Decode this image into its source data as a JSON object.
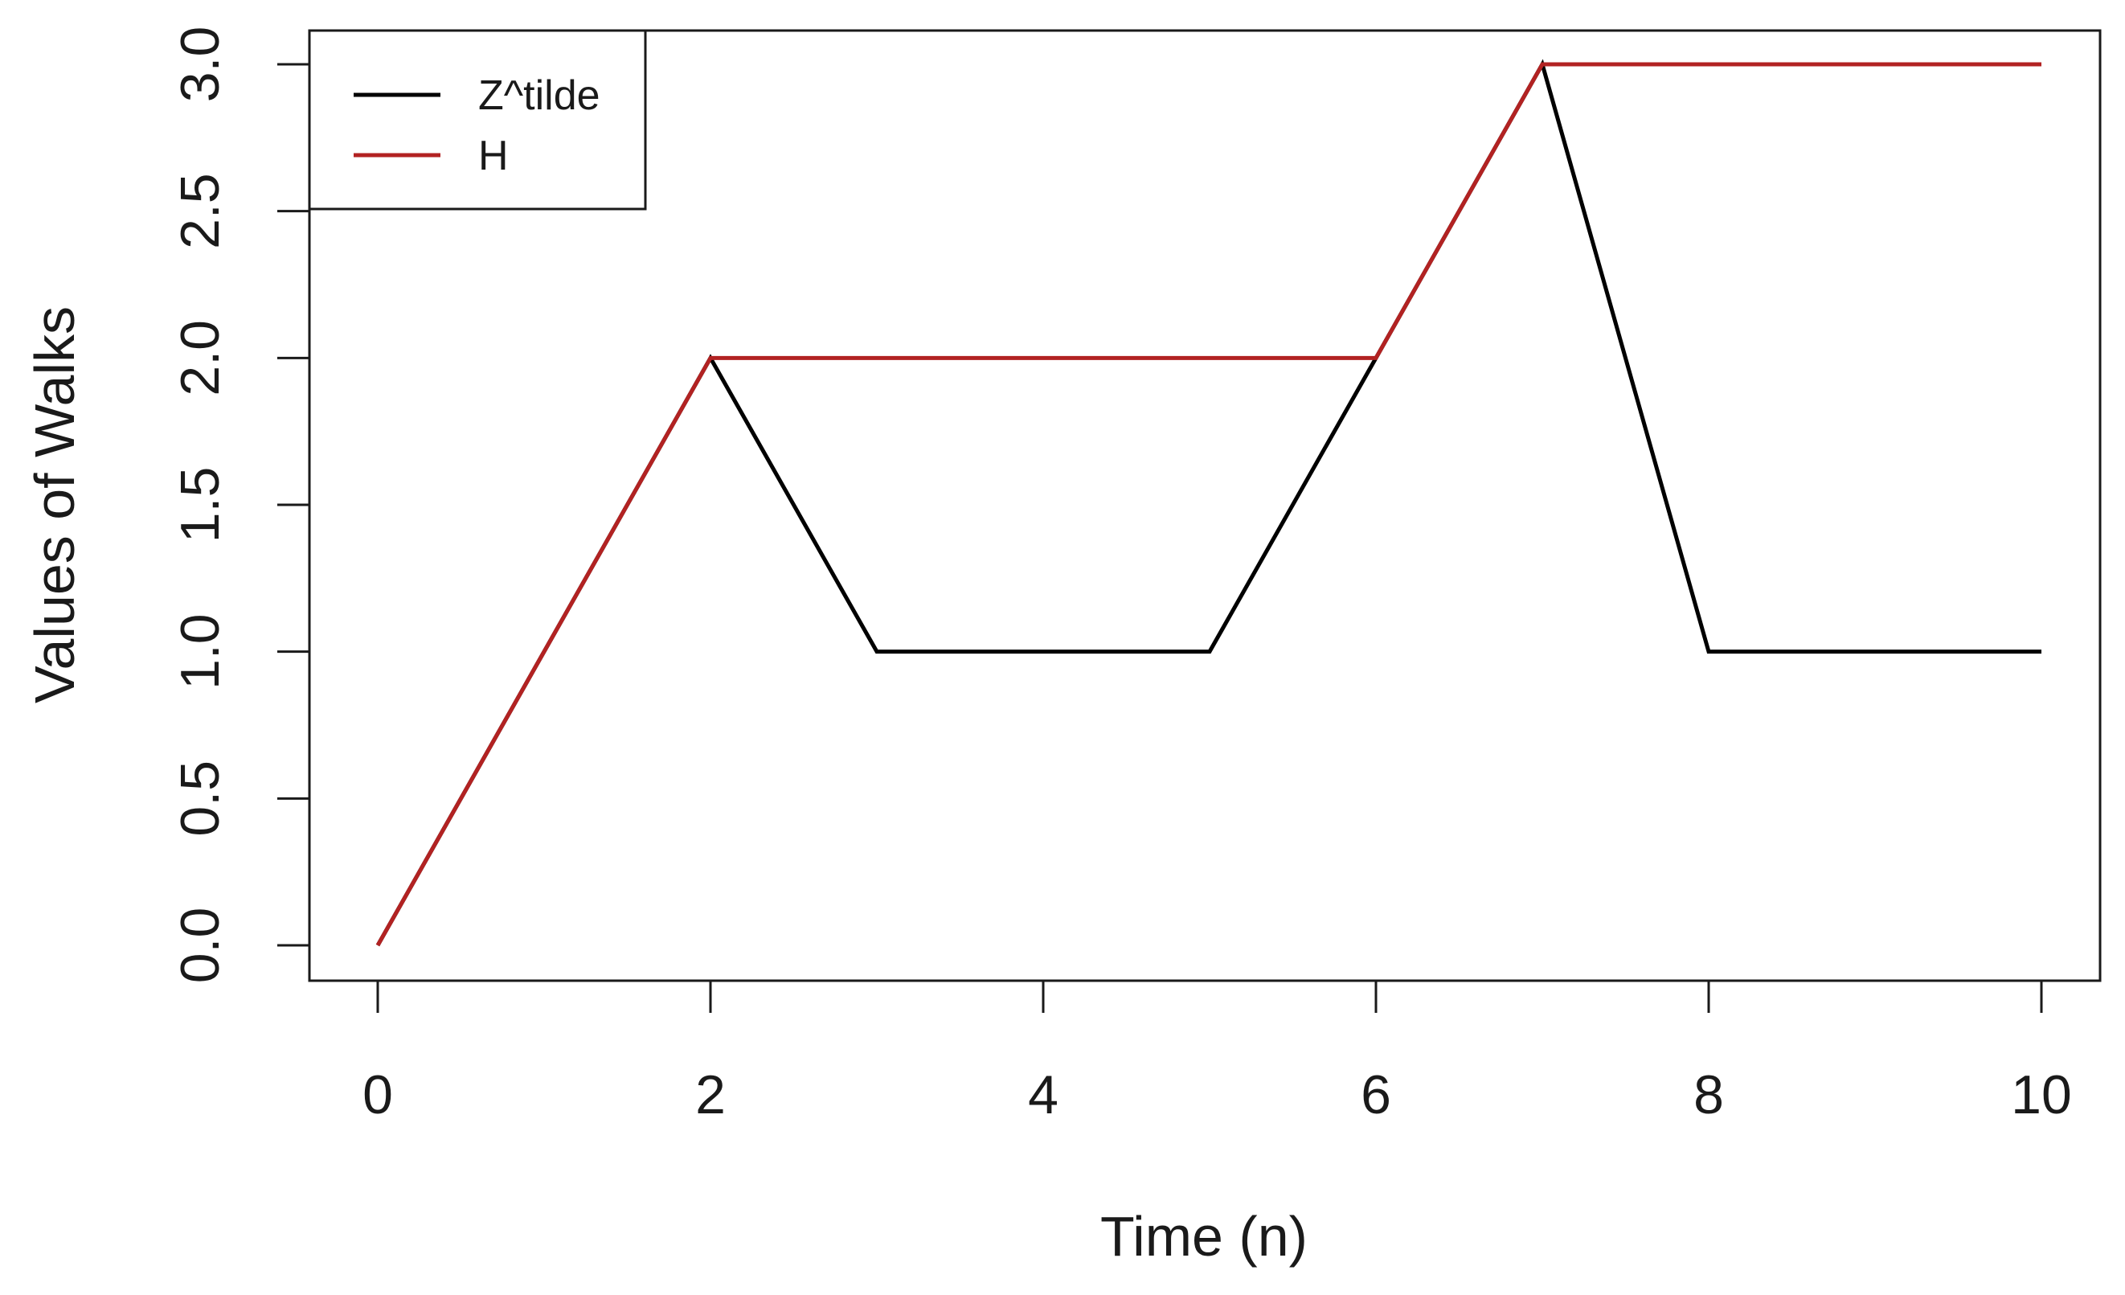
{
  "chart_data": {
    "type": "line",
    "title": "",
    "xlabel": "Time (n)",
    "ylabel": "Values of Walks",
    "xlim": [
      0,
      10
    ],
    "ylim": [
      0,
      3
    ],
    "x_ticks": [
      0,
      2,
      4,
      6,
      8,
      10
    ],
    "x_tick_labels": [
      "0",
      "2",
      "4",
      "6",
      "8",
      "10"
    ],
    "y_ticks": [
      0,
      0.5,
      1,
      1.5,
      2,
      2.5,
      3
    ],
    "y_tick_labels": [
      "0.0",
      "0.5",
      "1.0",
      "1.5",
      "2.0",
      "2.5",
      "3.0"
    ],
    "grid": false,
    "legend_position": "top-left",
    "x": [
      0,
      1,
      2,
      3,
      4,
      5,
      6,
      7,
      8,
      9,
      10
    ],
    "series": [
      {
        "name": "Z^tilde",
        "color": "#000000",
        "values": [
          0,
          1,
          2,
          1,
          1,
          1,
          2,
          3,
          1,
          1,
          1
        ]
      },
      {
        "name": "H",
        "color": "#b22222",
        "values": [
          0,
          1,
          2,
          2,
          2,
          2,
          2,
          3,
          3,
          3,
          3
        ]
      }
    ]
  }
}
